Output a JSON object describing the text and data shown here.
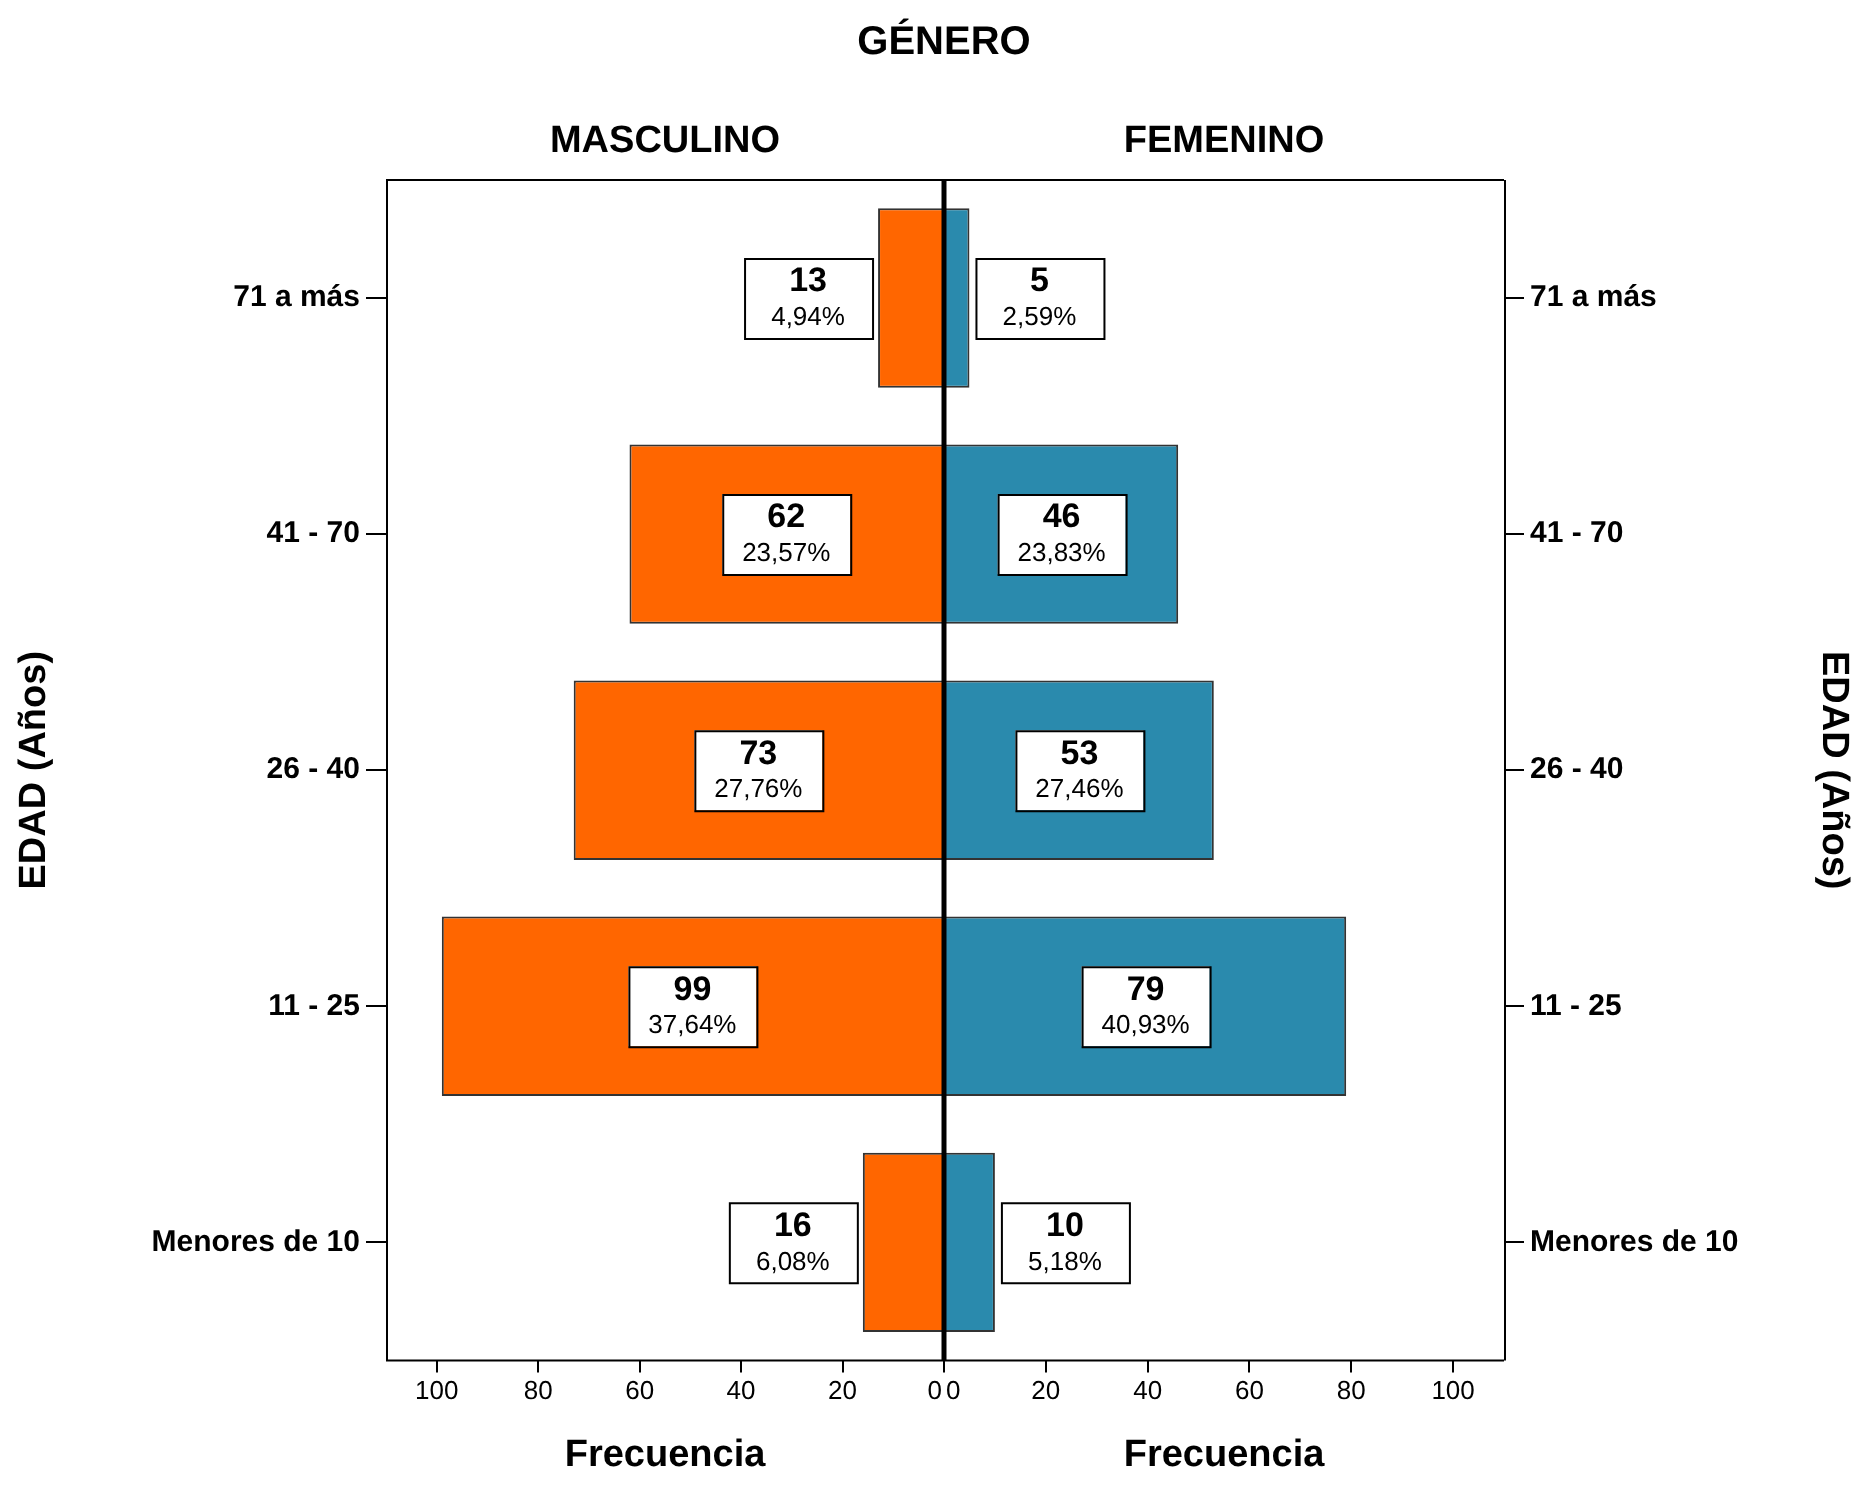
{
  "chart_data": [
    {
      "type": "bar",
      "orientation": "horizontal",
      "title": "GÉNERO",
      "subtitle": "MASCULINO",
      "xlabel": "Frecuencia",
      "ylabel": "EDAD (Años)",
      "categories": [
        "71 a más",
        "41 - 70",
        "26 - 40",
        "11 - 25",
        "Menores de 10"
      ],
      "values": [
        13,
        62,
        73,
        99,
        16
      ],
      "color": "#ff6600",
      "value_labels": [
        "13\n4,94%",
        "62\n23,57%",
        "73\n27,76%",
        "99\n37,64%",
        "16\n6,08%"
      ],
      "xlim": [
        110,
        0
      ],
      "xticks": [
        100,
        80,
        60,
        40,
        20,
        0
      ],
      "grid": false
    },
    {
      "type": "bar",
      "orientation": "horizontal",
      "subtitle": "FEMENINO",
      "xlabel": "Frecuencia",
      "ylabel": "EDAD (Años)",
      "categories": [
        "71 a más",
        "41 - 70",
        "26 - 40",
        "11 - 25",
        "Menores de 10"
      ],
      "values": [
        5,
        46,
        53,
        79,
        10
      ],
      "color": "#2a8aad",
      "value_labels": [
        "5\n2,59%",
        "46\n23,83%",
        "53\n27,46%",
        "79\n40,93%",
        "10\n5,18%"
      ],
      "xlim": [
        0,
        110
      ],
      "xticks": [
        0,
        20,
        40,
        60,
        80,
        100
      ],
      "grid": false
    }
  ]
}
